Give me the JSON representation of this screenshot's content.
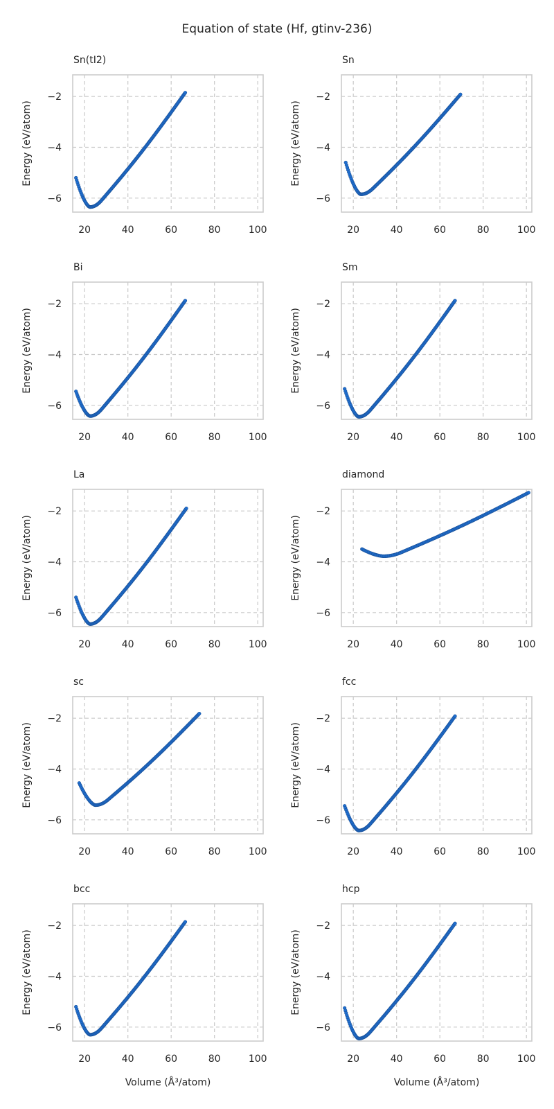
{
  "figure": {
    "title": "Equation of state (Hf, gtinv-236)",
    "point_color": "#1f6fd1",
    "point_edge_color": "#1a4f94"
  },
  "chart_data": [
    {
      "type": "scatter",
      "title": "Sn(tI2)",
      "xlabel": "",
      "ylabel": "Energy (eV/atom)",
      "xlim": [
        14.5,
        102.5
      ],
      "ylim": [
        -6.55,
        -1.15
      ],
      "xticks": [
        20,
        40,
        60,
        80,
        100
      ],
      "yticks": [
        -6,
        -4,
        -2
      ],
      "grid": true,
      "curve": {
        "v_min": 16,
        "v_eq": 22.5,
        "v_max": 66.5,
        "e_eq": -6.35,
        "e_start": -5.2,
        "e_end": -1.85,
        "n_points": 150
      }
    },
    {
      "type": "scatter",
      "title": "Sn",
      "xlabel": "",
      "ylabel": "Energy (eV/atom)",
      "xlim": [
        14.5,
        102.5
      ],
      "ylim": [
        -6.55,
        -1.15
      ],
      "xticks": [
        20,
        40,
        60,
        80,
        100
      ],
      "yticks": [
        -6,
        -4,
        -2
      ],
      "grid": true,
      "curve": {
        "v_min": 16.5,
        "v_eq": 23.5,
        "v_max": 69.5,
        "e_eq": -5.85,
        "e_start": -4.6,
        "e_end": -1.92,
        "n_points": 150
      }
    },
    {
      "type": "scatter",
      "title": "Bi",
      "xlabel": "",
      "ylabel": "Energy (eV/atom)",
      "xlim": [
        14.5,
        102.5
      ],
      "ylim": [
        -6.55,
        -1.15
      ],
      "xticks": [
        20,
        40,
        60,
        80,
        100
      ],
      "yticks": [
        -6,
        -4,
        -2
      ],
      "grid": true,
      "curve": {
        "v_min": 16,
        "v_eq": 22.5,
        "v_max": 66.5,
        "e_eq": -6.42,
        "e_start": -5.45,
        "e_end": -1.88,
        "n_points": 150
      }
    },
    {
      "type": "scatter",
      "title": "Sm",
      "xlabel": "",
      "ylabel": "Energy (eV/atom)",
      "xlim": [
        14.5,
        102.5
      ],
      "ylim": [
        -6.55,
        -1.15
      ],
      "xticks": [
        20,
        40,
        60,
        80,
        100
      ],
      "yticks": [
        -6,
        -4,
        -2
      ],
      "grid": true,
      "curve": {
        "v_min": 16,
        "v_eq": 22.5,
        "v_max": 67,
        "e_eq": -6.45,
        "e_start": -5.35,
        "e_end": -1.88,
        "n_points": 150
      }
    },
    {
      "type": "scatter",
      "title": "La",
      "xlabel": "",
      "ylabel": "Energy (eV/atom)",
      "xlim": [
        14.5,
        102.5
      ],
      "ylim": [
        -6.55,
        -1.15
      ],
      "xticks": [
        20,
        40,
        60,
        80,
        100
      ],
      "yticks": [
        -6,
        -4,
        -2
      ],
      "grid": true,
      "curve": {
        "v_min": 16,
        "v_eq": 22.5,
        "v_max": 67,
        "e_eq": -6.45,
        "e_start": -5.4,
        "e_end": -1.9,
        "n_points": 150
      }
    },
    {
      "type": "scatter",
      "title": "diamond",
      "xlabel": "",
      "ylabel": "Energy (eV/atom)",
      "xlim": [
        14.5,
        102.5
      ],
      "ylim": [
        -6.55,
        -1.15
      ],
      "xticks": [
        20,
        40,
        60,
        80,
        100
      ],
      "yticks": [
        -6,
        -4,
        -2
      ],
      "grid": true,
      "curve": {
        "v_min": 24,
        "v_eq": 34,
        "v_max": 101,
        "e_eq": -3.78,
        "e_start": -3.5,
        "e_end": -1.28,
        "n_points": 150
      }
    },
    {
      "type": "scatter",
      "title": "sc",
      "xlabel": "",
      "ylabel": "Energy (eV/atom)",
      "xlim": [
        14.5,
        102.5
      ],
      "ylim": [
        -6.55,
        -1.15
      ],
      "xticks": [
        20,
        40,
        60,
        80,
        100
      ],
      "yticks": [
        -6,
        -4,
        -2
      ],
      "grid": true,
      "curve": {
        "v_min": 17.5,
        "v_eq": 25,
        "v_max": 73,
        "e_eq": -5.42,
        "e_start": -4.55,
        "e_end": -1.82,
        "n_points": 150
      }
    },
    {
      "type": "scatter",
      "title": "fcc",
      "xlabel": "",
      "ylabel": "Energy (eV/atom)",
      "xlim": [
        14.5,
        102.5
      ],
      "ylim": [
        -6.55,
        -1.15
      ],
      "xticks": [
        20,
        40,
        60,
        80,
        100
      ],
      "yticks": [
        -6,
        -4,
        -2
      ],
      "grid": true,
      "curve": {
        "v_min": 16,
        "v_eq": 22.5,
        "v_max": 67,
        "e_eq": -6.42,
        "e_start": -5.45,
        "e_end": -1.92,
        "n_points": 150
      }
    },
    {
      "type": "scatter",
      "title": "bcc",
      "xlabel": "Volume (Å³/atom)",
      "ylabel": "Energy (eV/atom)",
      "xlim": [
        14.5,
        102.5
      ],
      "ylim": [
        -6.55,
        -1.15
      ],
      "xticks": [
        20,
        40,
        60,
        80,
        100
      ],
      "yticks": [
        -6,
        -4,
        -2
      ],
      "grid": true,
      "curve": {
        "v_min": 16,
        "v_eq": 22.5,
        "v_max": 66.5,
        "e_eq": -6.3,
        "e_start": -5.2,
        "e_end": -1.86,
        "n_points": 150
      }
    },
    {
      "type": "scatter",
      "title": "hcp",
      "xlabel": "Volume (Å³/atom)",
      "ylabel": "Energy (eV/atom)",
      "xlim": [
        14.5,
        102.5
      ],
      "ylim": [
        -6.55,
        -1.15
      ],
      "xticks": [
        20,
        40,
        60,
        80,
        100
      ],
      "yticks": [
        -6,
        -4,
        -2
      ],
      "grid": true,
      "curve": {
        "v_min": 16,
        "v_eq": 22.5,
        "v_max": 67,
        "e_eq": -6.45,
        "e_start": -5.25,
        "e_end": -1.92,
        "n_points": 150
      }
    }
  ]
}
